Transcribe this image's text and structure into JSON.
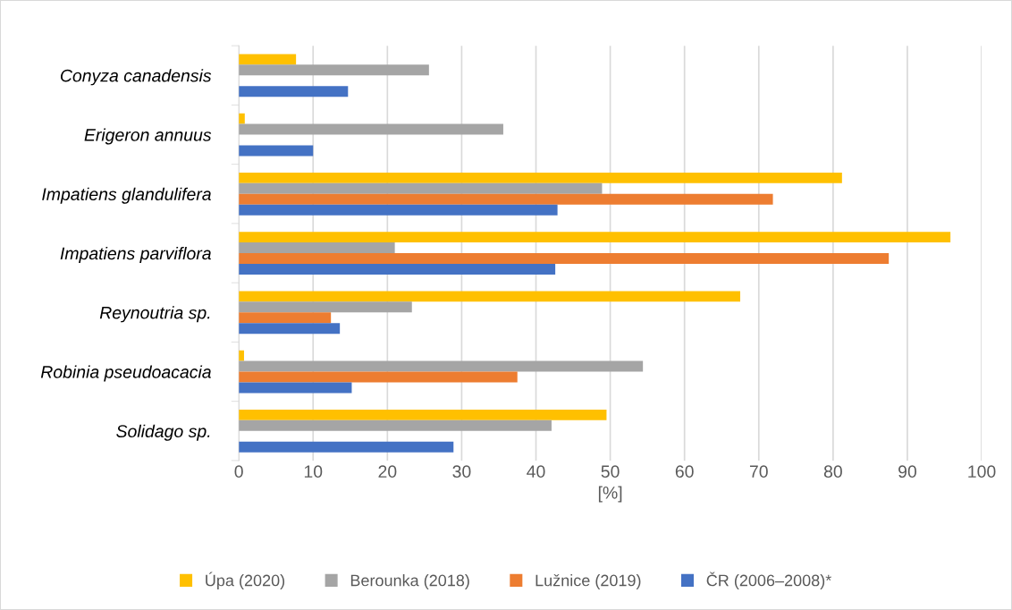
{
  "chart_data": {
    "type": "bar",
    "orientation": "horizontal",
    "xlabel": "[%]",
    "categories": [
      "Conyza canadensis",
      "Erigeron annuus",
      "Impatiens glandulifera",
      "Impatiens parviflora",
      "Reynoutria sp.",
      "Robinia pseudoacacia",
      "Solidago sp."
    ],
    "series": [
      {
        "name": "Úpa (2020)",
        "color": "#ffc000",
        "values": [
          7.7,
          0.8,
          81.2,
          95.8,
          67.5,
          0.7,
          49.5
        ]
      },
      {
        "name": "Berounka (2018)",
        "color": "#a5a5a5",
        "values": [
          25.6,
          35.6,
          48.9,
          21.0,
          23.3,
          54.4,
          42.1
        ]
      },
      {
        "name": "Lužnice (2019)",
        "color": "#ed7d31",
        "values": [
          null,
          null,
          71.9,
          87.5,
          12.4,
          37.5,
          null
        ]
      },
      {
        "name": "ČR (2006–2008)*",
        "color": "#4472c4",
        "values": [
          14.7,
          10.0,
          42.9,
          42.6,
          13.6,
          15.2,
          28.9
        ]
      }
    ],
    "xlim": [
      0,
      100
    ],
    "xticks": [
      0,
      10,
      20,
      30,
      40,
      50,
      60,
      70,
      80,
      90,
      100
    ],
    "grid": "x",
    "legend": "bottom"
  }
}
